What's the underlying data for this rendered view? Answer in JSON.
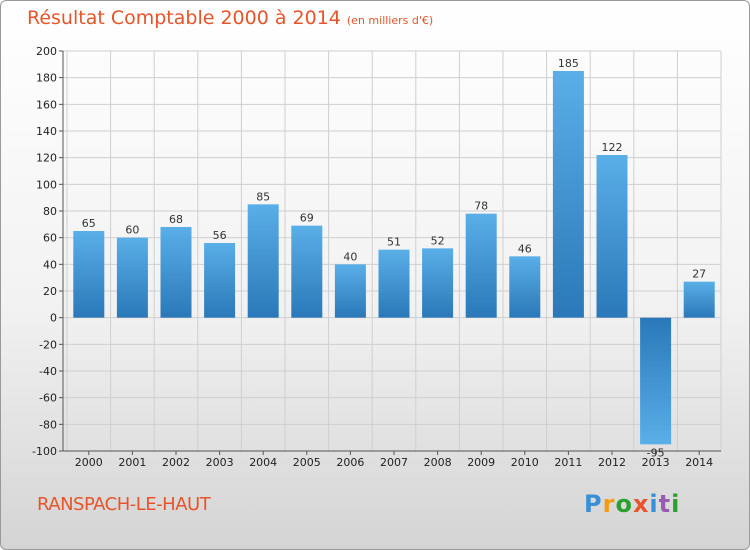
{
  "title": {
    "main": "Résultat Comptable 2000 à 2014",
    "unit": "(en milliers d'€)"
  },
  "commune": "RANSPACH-LE-HAUT",
  "logo": {
    "text": "Proxiti",
    "letters": [
      "P",
      "r",
      "o",
      "x",
      "i",
      "t",
      "i"
    ],
    "colors": [
      "#3a8fd6",
      "#f39c12",
      "#2ca02c",
      "#e8542a",
      "#3a8fd6",
      "#9b59b6",
      "#2ca02c"
    ]
  },
  "chart_data": {
    "type": "bar",
    "title": "Résultat Comptable 2000 à 2014",
    "ylabel": "(en milliers d'€)",
    "categories": [
      "2000",
      "2001",
      "2002",
      "2003",
      "2004",
      "2005",
      "2006",
      "2007",
      "2008",
      "2009",
      "2010",
      "2011",
      "2012",
      "2013",
      "2014"
    ],
    "values": [
      65,
      60,
      68,
      56,
      85,
      69,
      40,
      51,
      52,
      78,
      46,
      185,
      122,
      -95,
      27
    ],
    "value_labels": [
      "65",
      "60",
      "68",
      "56",
      "85",
      "69",
      "40",
      "51",
      "52",
      "78",
      "46",
      "185",
      "122",
      "-95",
      "27"
    ],
    "ylim": [
      -100,
      200
    ],
    "yticks": [
      -100,
      -80,
      -60,
      -40,
      -20,
      0,
      20,
      40,
      60,
      80,
      100,
      120,
      140,
      160,
      180,
      200
    ],
    "grid": true,
    "colors": {
      "bar_light": "#5aafe8",
      "bar_dark": "#2a78b8",
      "grid": "#cfcfcf"
    }
  }
}
